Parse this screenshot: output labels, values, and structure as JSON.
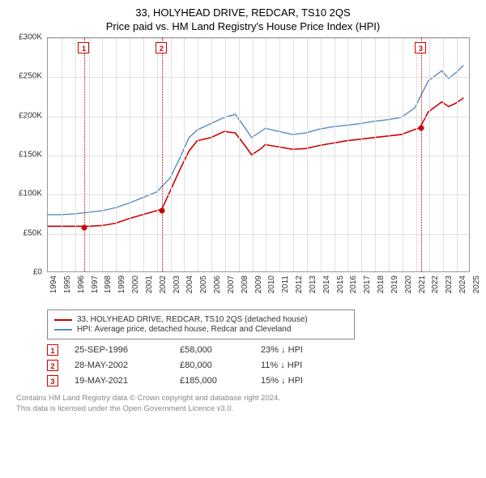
{
  "title_line1": "33, HOLYHEAD DRIVE, REDCAR, TS10 2QS",
  "title_line2": "Price paid vs. HM Land Registry's House Price Index (HPI)",
  "chart": {
    "type": "line",
    "background_color": "#ffffff",
    "grid_color": "#e0e0e0",
    "border_color": "#999999",
    "ylim": [
      0,
      300
    ],
    "ytick_step": 50,
    "yticks": [
      "£0",
      "£50K",
      "£100K",
      "£150K",
      "£200K",
      "£250K",
      "£300K"
    ],
    "xlim": [
      1994,
      2025
    ],
    "xticks": [
      1994,
      1995,
      1996,
      1997,
      1998,
      1999,
      2000,
      2001,
      2002,
      2003,
      2004,
      2005,
      2006,
      2007,
      2008,
      2009,
      2010,
      2011,
      2012,
      2013,
      2014,
      2015,
      2016,
      2017,
      2018,
      2019,
      2020,
      2021,
      2022,
      2023,
      2024,
      2025
    ],
    "series_red": {
      "color": "#cc0000",
      "width": 1.6,
      "points": [
        [
          1994,
          58
        ],
        [
          1995,
          58
        ],
        [
          1996.7,
          58
        ],
        [
          1997,
          58
        ],
        [
          1998,
          59
        ],
        [
          1999,
          62
        ],
        [
          2000,
          68
        ],
        [
          2001,
          73
        ],
        [
          2002.4,
          80
        ],
        [
          2003,
          103
        ],
        [
          2003.7,
          130
        ],
        [
          2004.4,
          155
        ],
        [
          2005,
          168
        ],
        [
          2006,
          172
        ],
        [
          2007,
          180
        ],
        [
          2007.8,
          178
        ],
        [
          2008.5,
          162
        ],
        [
          2009,
          150
        ],
        [
          2009.7,
          158
        ],
        [
          2010,
          163
        ],
        [
          2011,
          160
        ],
        [
          2012,
          157
        ],
        [
          2013,
          158
        ],
        [
          2014,
          162
        ],
        [
          2015,
          165
        ],
        [
          2016,
          168
        ],
        [
          2017,
          170
        ],
        [
          2018,
          172
        ],
        [
          2019,
          174
        ],
        [
          2020,
          176
        ],
        [
          2021.4,
          185
        ],
        [
          2022,
          205
        ],
        [
          2023,
          218
        ],
        [
          2023.5,
          212
        ],
        [
          2024,
          216
        ],
        [
          2024.6,
          223
        ]
      ]
    },
    "series_blue": {
      "color": "#5b8ac0",
      "width": 1.4,
      "points": [
        [
          1994,
          73
        ],
        [
          1995,
          73
        ],
        [
          1996,
          74
        ],
        [
          1997,
          76
        ],
        [
          1998,
          78
        ],
        [
          1999,
          82
        ],
        [
          2000,
          88
        ],
        [
          2001,
          95
        ],
        [
          2002,
          102
        ],
        [
          2003,
          120
        ],
        [
          2003.7,
          145
        ],
        [
          2004.4,
          172
        ],
        [
          2005,
          182
        ],
        [
          2006,
          190
        ],
        [
          2007,
          198
        ],
        [
          2007.8,
          202
        ],
        [
          2008.5,
          185
        ],
        [
          2009,
          172
        ],
        [
          2009.7,
          180
        ],
        [
          2010,
          184
        ],
        [
          2011,
          180
        ],
        [
          2012,
          176
        ],
        [
          2013,
          178
        ],
        [
          2014,
          183
        ],
        [
          2015,
          186
        ],
        [
          2016,
          188
        ],
        [
          2017,
          190
        ],
        [
          2018,
          193
        ],
        [
          2019,
          195
        ],
        [
          2020,
          198
        ],
        [
          2021,
          210
        ],
        [
          2022,
          245
        ],
        [
          2023,
          258
        ],
        [
          2023.5,
          248
        ],
        [
          2024,
          255
        ],
        [
          2024.6,
          265
        ]
      ]
    },
    "markers": [
      {
        "num": "1",
        "x": 1996.7,
        "y": 58
      },
      {
        "num": "2",
        "x": 2002.4,
        "y": 80
      },
      {
        "num": "3",
        "x": 2021.4,
        "y": 185
      }
    ],
    "marker_line_color": "#cc0000",
    "marker_box_border": "#cc0000",
    "label_fontsize": 10,
    "label_color": "#333333"
  },
  "legend": {
    "border_color": "#888888",
    "items": [
      {
        "color": "#cc0000",
        "label": "33, HOLYHEAD DRIVE, REDCAR, TS10 2QS (detached house)"
      },
      {
        "color": "#5b8ac0",
        "label": "HPI: Average price, detached house, Redcar and Cleveland"
      }
    ]
  },
  "sales": [
    {
      "num": "1",
      "date": "25-SEP-1996",
      "price": "£58,000",
      "pct": "23% ↓ HPI"
    },
    {
      "num": "2",
      "date": "28-MAY-2002",
      "price": "£80,000",
      "pct": "11% ↓ HPI"
    },
    {
      "num": "3",
      "date": "19-MAY-2021",
      "price": "£185,000",
      "pct": "15% ↓ HPI"
    }
  ],
  "footer_line1": "Contains HM Land Registry data © Crown copyright and database right 2024.",
  "footer_line2": "This data is licensed under the Open Government Licence v3.0."
}
